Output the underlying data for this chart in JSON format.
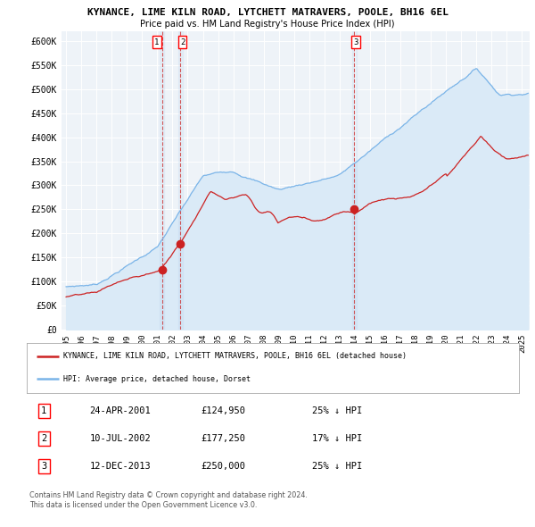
{
  "title": "KYNANCE, LIME KILN ROAD, LYTCHETT MATRAVERS, POOLE, BH16 6EL",
  "subtitle": "Price paid vs. HM Land Registry's House Price Index (HPI)",
  "xlim_start": 1994.7,
  "xlim_end": 2025.5,
  "ylim_bottom": 0,
  "ylim_top": 620000,
  "hpi_color": "#7ab4e8",
  "hpi_fill_color": "#daeaf7",
  "price_color": "#cc2222",
  "vline_color": "#cc2222",
  "plot_bg_color": "#eef3f8",
  "sale_dates": [
    2001.31,
    2002.53,
    2013.95
  ],
  "sale_prices": [
    124950,
    177250,
    250000
  ],
  "sale_labels": [
    "1",
    "2",
    "3"
  ],
  "legend_property": "KYNANCE, LIME KILN ROAD, LYTCHETT MATRAVERS, POOLE, BH16 6EL (detached house)",
  "legend_hpi": "HPI: Average price, detached house, Dorset",
  "table_rows": [
    [
      "1",
      "24-APR-2001",
      "£124,950",
      "25% ↓ HPI"
    ],
    [
      "2",
      "10-JUL-2002",
      "£177,250",
      "17% ↓ HPI"
    ],
    [
      "3",
      "12-DEC-2013",
      "£250,000",
      "25% ↓ HPI"
    ]
  ],
  "footnote1": "Contains HM Land Registry data © Crown copyright and database right 2024.",
  "footnote2": "This data is licensed under the Open Government Licence v3.0."
}
